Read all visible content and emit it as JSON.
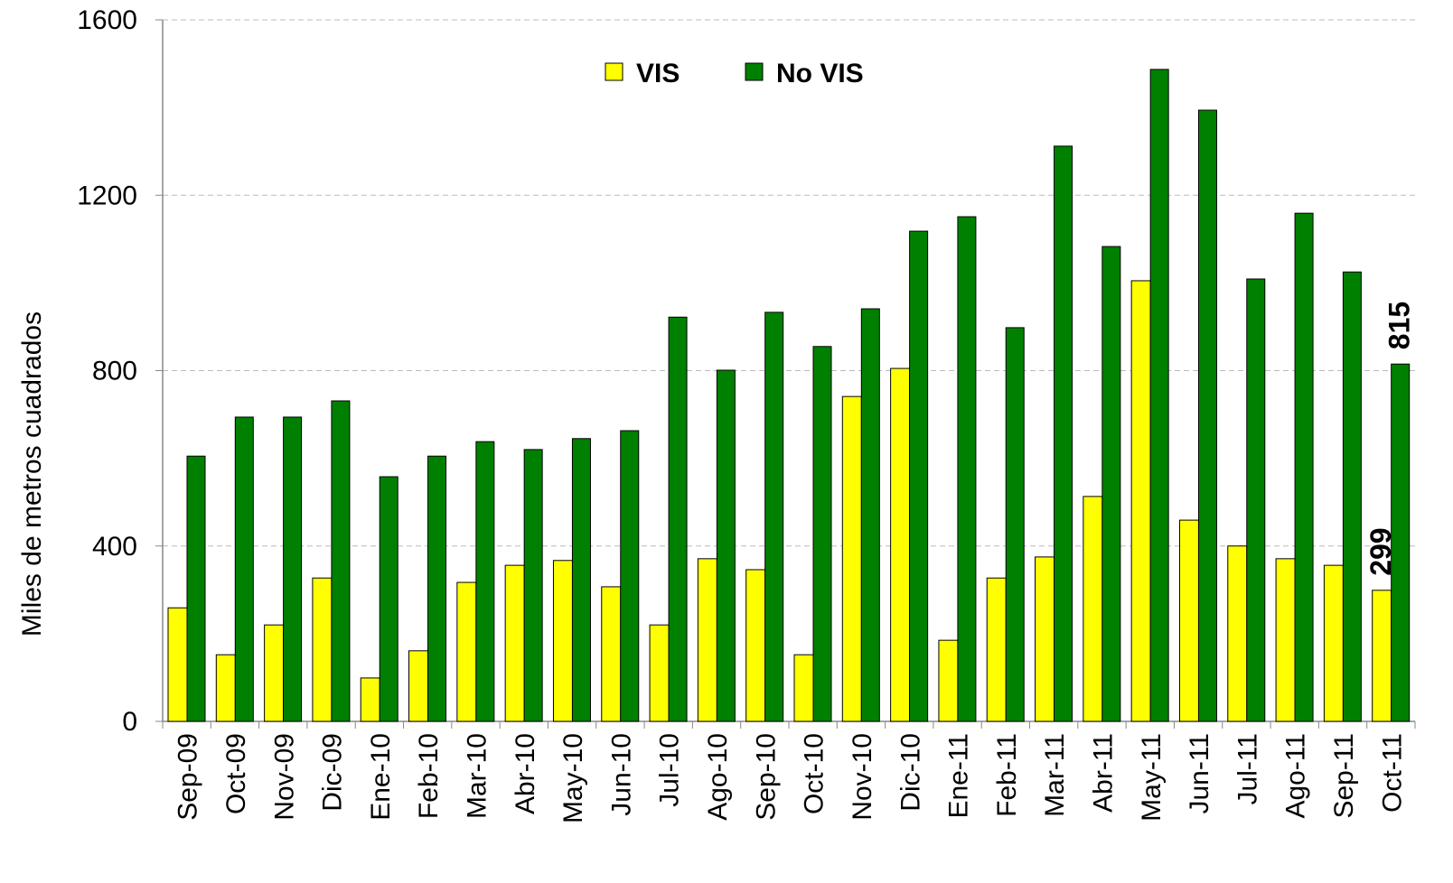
{
  "chart_data": {
    "type": "bar",
    "y_label": "Miles de metros cuadrados",
    "categories": [
      "Sep-09",
      "Oct-09",
      "Nov-09",
      "Dic-09",
      "Ene-10",
      "Feb-10",
      "Mar-10",
      "Abr-10",
      "May-10",
      "Jun-10",
      "Jul-10",
      "Ago-10",
      "Sep-10",
      "Oct-10",
      "Nov-10",
      "Dic-10",
      "Ene-11",
      "Feb-11",
      "Mar-11",
      "Abr-11",
      "May-11",
      "Jun-11",
      "Jul-11",
      "Ago-11",
      "Sep-11",
      "Oct-11"
    ],
    "series": [
      {
        "name": "VIS",
        "color": "#ffff00",
        "values": [
          259,
          152,
          220,
          327,
          99,
          161,
          317,
          356,
          367,
          307,
          220,
          371,
          346,
          152,
          741,
          805,
          185,
          327,
          375,
          513,
          1005,
          459,
          400,
          371,
          356,
          299
        ],
        "value_labels": [
          null,
          null,
          null,
          null,
          null,
          null,
          null,
          null,
          null,
          null,
          null,
          null,
          null,
          null,
          null,
          null,
          null,
          null,
          null,
          null,
          null,
          null,
          null,
          null,
          null,
          "299"
        ]
      },
      {
        "name": "No VIS",
        "color": "#008000",
        "values": [
          605,
          694,
          694,
          731,
          558,
          605,
          638,
          620,
          645,
          663,
          922,
          801,
          933,
          855,
          941,
          1118,
          1151,
          898,
          1312,
          1083,
          1487,
          1394,
          1009,
          1159,
          1025,
          815
        ],
        "value_labels": [
          null,
          null,
          null,
          null,
          null,
          null,
          null,
          null,
          null,
          null,
          null,
          null,
          null,
          null,
          null,
          null,
          null,
          null,
          null,
          null,
          null,
          null,
          null,
          null,
          null,
          "815"
        ]
      }
    ],
    "ylim": [
      0,
      1600
    ],
    "yticks": [
      0,
      400,
      800,
      1200,
      1600
    ],
    "grid": true,
    "legend": "top"
  }
}
